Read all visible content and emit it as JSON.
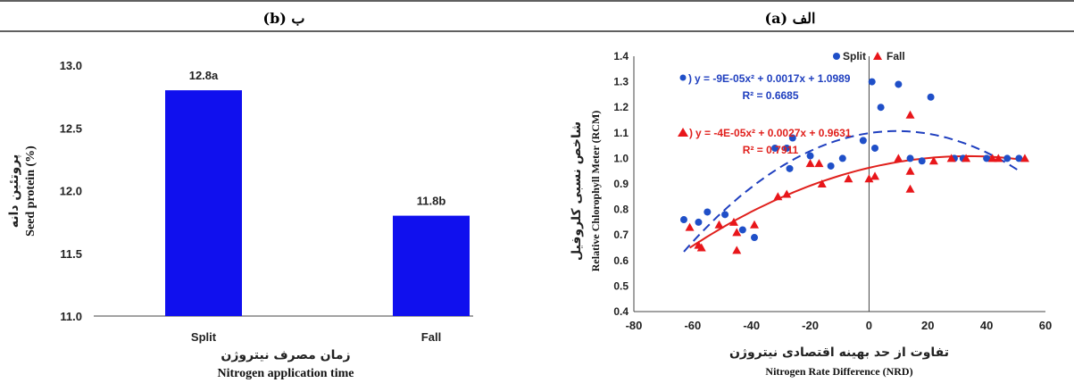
{
  "colors": {
    "bar": "#1010ee",
    "split": "#1f4fc8",
    "fall": "#e8161a",
    "split_curve": "#1f3fbf",
    "fall_curve": "#e0201c"
  },
  "chart_data": [
    {
      "id": "b",
      "panel_label": "(b)  ب",
      "type": "bar",
      "categories": [
        "Split",
        "Fall"
      ],
      "values": [
        12.8,
        11.8
      ],
      "data_labels": [
        "12.8a",
        "11.8b"
      ],
      "ylim": [
        11.0,
        13.0
      ],
      "yticks": [
        11.0,
        11.5,
        12.0,
        12.5,
        13.0
      ],
      "ytick_labels": [
        "11.0",
        "11.5",
        "12.0",
        "12.5",
        "13.0"
      ],
      "ylabel_fa": "پروتئین دانه",
      "ylabel_en": "Seed protein (%)",
      "xlabel_fa": "زمان مصرف نیتروژن",
      "xlabel_en": "Nitrogen application time",
      "grid": false
    },
    {
      "id": "a",
      "panel_label": "(a)  الف",
      "type": "scatter",
      "xlim": [
        -80,
        60
      ],
      "ylim": [
        0.4,
        1.4
      ],
      "xticks": [
        -80,
        -60,
        -40,
        -20,
        0,
        20,
        40,
        60
      ],
      "xtick_labels": [
        "-80",
        "-60",
        "-40",
        "-20",
        "0",
        "20",
        "40",
        "60"
      ],
      "yticks": [
        0.4,
        0.5,
        0.6,
        0.7,
        0.8,
        0.9,
        1.0,
        1.1,
        1.2,
        1.3,
        1.4
      ],
      "ytick_labels": [
        "0.4",
        "0.5",
        "0.6",
        "0.7",
        "0.8",
        "0.9",
        "1.0",
        "1.1",
        "1.2",
        "1.3",
        "1.4"
      ],
      "xlabel_fa": "تفاوت از حد بهینه اقتصادی نیتروژن",
      "xlabel_en": "Nitrogen Rate Difference (NRD)",
      "ylabel_fa": "شاخص نسبی کلروفیل",
      "ylabel_en": "Relative Chlorophyll Meter (RCM)",
      "legend_position": "top",
      "grid": false,
      "series": [
        {
          "name": "Split",
          "marker": "circle",
          "x": [
            -63,
            -58,
            -55,
            -49,
            -43,
            -39,
            -32,
            -28,
            -27,
            -26,
            -20,
            -13,
            -9,
            -2,
            1,
            2,
            4,
            10,
            14,
            18,
            21,
            29,
            32,
            40,
            47,
            51
          ],
          "y": [
            0.76,
            0.75,
            0.79,
            0.78,
            0.72,
            0.69,
            1.04,
            1.04,
            0.96,
            1.08,
            1.01,
            0.97,
            1.0,
            1.07,
            1.3,
            1.04,
            1.2,
            1.29,
            1.0,
            0.99,
            1.24,
            1.0,
            1.0,
            1.0,
            1.0,
            1.0
          ],
          "trendline": {
            "equation": "y = -9E-05x² + 0.0017x + 1.0989",
            "r2": "R² = 0.6685",
            "coef": [
              -9e-05,
              0.0017,
              1.0989
            ],
            "x_range": [
              -63,
              51
            ]
          }
        },
        {
          "name": "Fall",
          "marker": "triangle",
          "x": [
            -61,
            -58,
            -57,
            -51,
            -46,
            -45,
            -45,
            -39,
            -31,
            -28,
            -20,
            -17,
            -16,
            -7,
            0,
            2,
            10,
            14,
            14,
            14,
            22,
            28,
            33,
            42,
            44,
            53
          ],
          "y": [
            0.73,
            0.66,
            0.65,
            0.74,
            0.75,
            0.71,
            0.64,
            0.74,
            0.85,
            0.86,
            0.98,
            0.98,
            0.9,
            0.92,
            0.92,
            0.93,
            1.0,
            1.17,
            0.95,
            0.88,
            0.99,
            1.0,
            1.0,
            1.0,
            1.0,
            1.0
          ],
          "trendline": {
            "equation": "y = -4E-05x² + 0.0027x + 0.9631",
            "r2": "R² = 0.7911",
            "coef": [
              -4e-05,
              0.0027,
              0.9631
            ],
            "x_range": [
              -61,
              53
            ]
          }
        }
      ]
    }
  ]
}
